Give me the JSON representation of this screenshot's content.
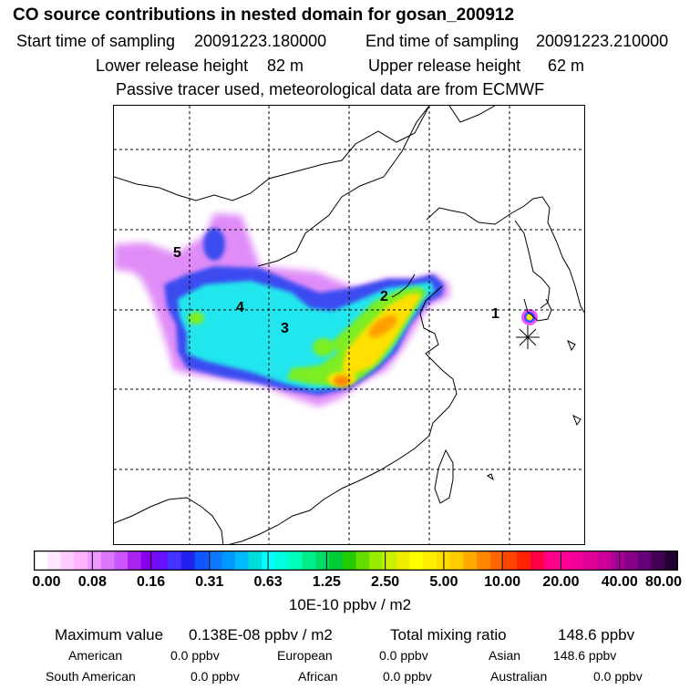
{
  "header": {
    "title": "CO  source contributions in nested domain for gosan_200912",
    "start_label": "Start time of sampling",
    "start_value": "20091223.180000",
    "end_label": "End time of sampling",
    "end_value": "20091223.210000",
    "lower_label": "Lower release height",
    "lower_value": "82 m",
    "upper_label": "Upper release height",
    "upper_value": "62 m",
    "tracer_note": "Passive tracer used, meteorological data are from ECMWF"
  },
  "chart_data": {
    "type": "heatmap",
    "title": "CO  source contributions in nested domain for gosan_200912",
    "region_labels": [
      "1",
      "2",
      "3",
      "4",
      "5"
    ],
    "receptor_marker": "gosan",
    "colorbar": {
      "tick_labels": [
        "0.00",
        "0.08",
        "0.16",
        "0.31",
        "0.63",
        "1.25",
        "2.50",
        "5.00",
        "10.00",
        "20.00",
        "40.00",
        "80.00"
      ],
      "colors": [
        "#ffffff",
        "#ffe6ff",
        "#ffccff",
        "#ffb3ff",
        "#ee99ff",
        "#dd77ff",
        "#cc55ff",
        "#aa22ee",
        "#8800ee",
        "#6611ff",
        "#4433ff",
        "#2222ee",
        "#1155ff",
        "#1177ff",
        "#0099ff",
        "#00bbff",
        "#00dddd",
        "#00ffff",
        "#00ffdd",
        "#00ffbb",
        "#00ee88",
        "#00dd66",
        "#00cc33",
        "#22cc00",
        "#66dd00",
        "#99ee00",
        "#ccee00",
        "#eeee00",
        "#ffff00",
        "#ffee00",
        "#ffdd00",
        "#ffcc00",
        "#ffaa00",
        "#ff8800",
        "#ff6600",
        "#ff4400",
        "#ff2200",
        "#ff0044",
        "#ff0088",
        "#ff0099",
        "#ee0099",
        "#dd0099",
        "#cc0099",
        "#aa0099",
        "#880088",
        "#660077",
        "#440055",
        "#220033"
      ],
      "unit_label": "10E-10 ppbv / m2"
    }
  },
  "stats": {
    "max_label": "Maximum value",
    "max_value": "0.138E-08 ppbv / m2",
    "total_label": "Total mixing ratio",
    "total_value": "148.6 ppbv",
    "american_label": "American",
    "american_value": "0.0 ppbv",
    "european_label": "European",
    "european_value": "0.0 ppbv",
    "asian_label": "Asian",
    "asian_value": "148.6 ppbv",
    "south_american_label": "South American",
    "south_american_value": "0.0 ppbv",
    "african_label": "African",
    "african_value": "0.0 ppbv",
    "australian_label": "Australian",
    "australian_value": "0.0 ppbv"
  }
}
